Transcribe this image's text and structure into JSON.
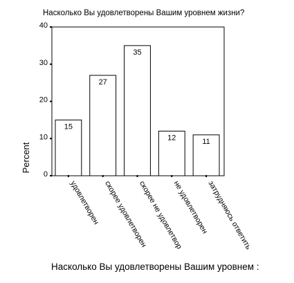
{
  "chart_data": {
    "type": "bar",
    "title": "Насколько Вы удовлетворены Вашим уровнем жизни?",
    "xlabel": "Насколько Вы удовлетворены Вашим уровнем :",
    "ylabel": "Percent",
    "ylim": [
      0,
      40
    ],
    "yticks": [
      0,
      10,
      20,
      30,
      40
    ],
    "grid": false,
    "categories": [
      "удовлетворен",
      "скорее удовлетворен",
      "скорее не удовлетвор",
      "не удовлетворен",
      "затрудняюсь ответить"
    ],
    "values": [
      15,
      27,
      35,
      12,
      11
    ],
    "data_labels": [
      "15",
      "27",
      "35",
      "12",
      "11"
    ],
    "colors": {
      "bar_fill": "#ffffff",
      "bar_stroke": "#000000",
      "axis": "#000000"
    }
  }
}
